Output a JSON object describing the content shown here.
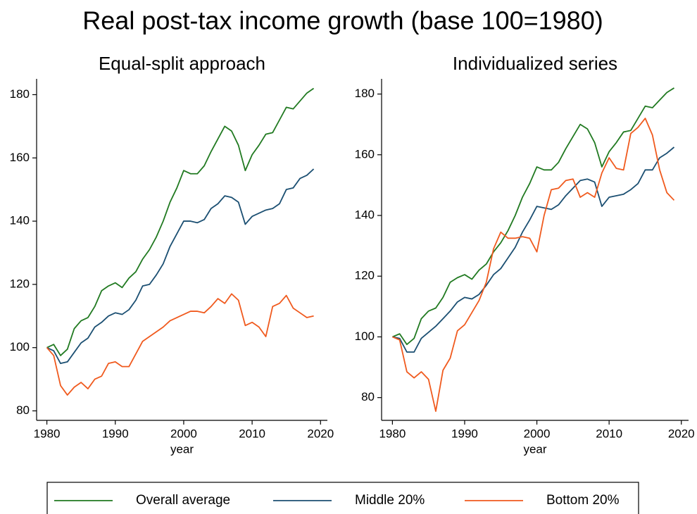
{
  "title": "Real post-tax income growth (base 100=1980)",
  "legend_position": "bottom",
  "chart_data": [
    {
      "type": "line",
      "title": "Equal-split approach",
      "xlabel": "year",
      "x": [
        1980,
        1981,
        1982,
        1983,
        1984,
        1985,
        1986,
        1987,
        1988,
        1989,
        1990,
        1991,
        1992,
        1993,
        1994,
        1995,
        1996,
        1997,
        1998,
        1999,
        2000,
        2001,
        2002,
        2003,
        2004,
        2005,
        2006,
        2007,
        2008,
        2009,
        2010,
        2011,
        2012,
        2013,
        2014,
        2015,
        2016,
        2017,
        2018,
        2019
      ],
      "xlim": [
        1978.5,
        2021
      ],
      "ylim": [
        77,
        185
      ],
      "xticks": [
        1980,
        1990,
        2000,
        2010,
        2020
      ],
      "yticks": [
        80,
        100,
        120,
        140,
        160,
        180
      ],
      "series": [
        {
          "name": "Overall average",
          "color": "#217a21",
          "values": [
            100,
            101,
            97.5,
            99.5,
            106,
            108.5,
            109.5,
            113,
            118,
            119.5,
            120.5,
            119,
            122,
            124,
            128,
            131,
            135,
            140,
            146,
            150.5,
            156,
            155,
            155,
            157.5,
            162,
            166,
            170,
            168.5,
            164,
            156,
            161,
            164,
            167.5,
            168,
            172,
            176,
            175.5,
            178,
            180.5,
            182
          ]
        },
        {
          "name": "Middle 20%",
          "color": "#1b4f72",
          "values": [
            100,
            99,
            95,
            95.5,
            98.5,
            101.5,
            103,
            106.5,
            108,
            110,
            111,
            110.5,
            112,
            115,
            119.5,
            120,
            123,
            126.5,
            132,
            136,
            140,
            140,
            139.5,
            140.5,
            144,
            145.5,
            148,
            147.5,
            146,
            139,
            141.5,
            142.5,
            143.5,
            144,
            145.5,
            150,
            150.5,
            153.5,
            154.5,
            156.5
          ]
        },
        {
          "name": "Bottom 20%",
          "color": "#f05a1e",
          "values": [
            100,
            97.5,
            88,
            85,
            87.5,
            89,
            87,
            90,
            91,
            95,
            95.5,
            94,
            94,
            98,
            102,
            103.5,
            105,
            106.5,
            108.5,
            109.5,
            110.5,
            111.5,
            111.5,
            111,
            113,
            115.5,
            114,
            117,
            115,
            107,
            108,
            106.5,
            103.5,
            113,
            114,
            116.5,
            112.5,
            111,
            109.5,
            110
          ]
        }
      ]
    },
    {
      "type": "line",
      "title": "Individualized series",
      "xlabel": "year",
      "x": [
        1980,
        1981,
        1982,
        1983,
        1984,
        1985,
        1986,
        1987,
        1988,
        1989,
        1990,
        1991,
        1992,
        1993,
        1994,
        1995,
        1996,
        1997,
        1998,
        1999,
        2000,
        2001,
        2002,
        2003,
        2004,
        2005,
        2006,
        2007,
        2008,
        2009,
        2010,
        2011,
        2012,
        2013,
        2014,
        2015,
        2016,
        2017,
        2018,
        2019
      ],
      "xlim": [
        1978.5,
        2021
      ],
      "ylim": [
        72.5,
        185
      ],
      "xticks": [
        1980,
        1990,
        2000,
        2010,
        2020
      ],
      "yticks": [
        80,
        100,
        120,
        140,
        160,
        180
      ],
      "series": [
        {
          "color": "#217a21",
          "values": [
            100,
            101,
            97.5,
            99.5,
            106,
            108.5,
            109.5,
            113,
            118,
            119.5,
            120.5,
            119,
            122,
            124,
            128,
            131,
            135,
            140,
            146,
            150.5,
            156,
            155,
            155,
            157.5,
            162,
            166,
            170,
            168.5,
            164,
            156,
            161,
            164,
            167.5,
            168,
            172,
            176,
            175.5,
            178,
            180.5,
            182
          ]
        },
        {
          "color": "#1b4f72",
          "values": [
            100,
            99.5,
            95,
            95,
            99.5,
            101.5,
            103.5,
            106,
            108.5,
            111.5,
            113,
            112.5,
            114,
            117,
            120.5,
            122.5,
            126,
            129.5,
            134.5,
            138.5,
            143,
            142.5,
            142,
            143.5,
            146.5,
            149,
            151.5,
            152,
            151,
            143,
            146,
            146.5,
            147,
            148.5,
            150.5,
            155,
            155,
            159,
            160.5,
            162.5
          ]
        },
        {
          "color": "#f05a1e",
          "values": [
            100,
            99,
            88.5,
            86.5,
            88.5,
            86,
            75.5,
            89,
            93,
            102,
            104,
            108,
            112,
            118,
            129,
            134.5,
            132.5,
            132.5,
            133,
            132.5,
            128,
            140,
            148.5,
            149,
            151.5,
            152,
            146,
            147.5,
            146,
            154,
            159,
            155.5,
            155,
            167,
            169,
            172,
            166.5,
            155,
            147.5,
            145
          ]
        }
      ]
    }
  ]
}
